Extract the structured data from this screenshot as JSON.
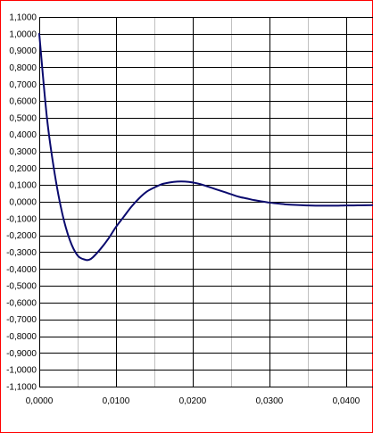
{
  "chart_data": {
    "type": "line",
    "title": "",
    "xlabel": "",
    "ylabel": "",
    "xlim": [
      0,
      0.0435
    ],
    "ylim": [
      -1.1,
      1.1
    ],
    "grid": true,
    "legend": "none",
    "x_ticks": [
      {
        "value": 0.0,
        "label": "0,0000"
      },
      {
        "value": 0.01,
        "label": "0,0100"
      },
      {
        "value": 0.02,
        "label": "0,0200"
      },
      {
        "value": 0.03,
        "label": "0,0300"
      },
      {
        "value": 0.04,
        "label": "0,0400"
      }
    ],
    "x_minor_step": 0.005,
    "y_ticks": [
      {
        "value": 1.1,
        "label": "1,1000"
      },
      {
        "value": 1.0,
        "label": "1,0000"
      },
      {
        "value": 0.9,
        "label": "0,9000"
      },
      {
        "value": 0.8,
        "label": "0,8000"
      },
      {
        "value": 0.7,
        "label": "0,7000"
      },
      {
        "value": 0.6,
        "label": "0,6000"
      },
      {
        "value": 0.5,
        "label": "0,5000"
      },
      {
        "value": 0.4,
        "label": "0,4000"
      },
      {
        "value": 0.3,
        "label": "0,3000"
      },
      {
        "value": 0.2,
        "label": "0,2000"
      },
      {
        "value": 0.1,
        "label": "0,1000"
      },
      {
        "value": 0.0,
        "label": "0,0000"
      },
      {
        "value": -0.1,
        "label": "-0,1000"
      },
      {
        "value": -0.2,
        "label": "-0,2000"
      },
      {
        "value": -0.3,
        "label": "-0,3000"
      },
      {
        "value": -0.4,
        "label": "-0,4000"
      },
      {
        "value": -0.5,
        "label": "-0,5000"
      },
      {
        "value": -0.6,
        "label": "-0,6000"
      },
      {
        "value": -0.7,
        "label": "-0,7000"
      },
      {
        "value": -0.8,
        "label": "-0,8000"
      },
      {
        "value": -0.9,
        "label": "-0,9000"
      },
      {
        "value": -1.0,
        "label": "-1,0000"
      },
      {
        "value": -1.1,
        "label": "-1,1000"
      }
    ],
    "series": [
      {
        "color": "#0a0a6e",
        "x": [
          0.0,
          0.001,
          0.002,
          0.003,
          0.004,
          0.005,
          0.006,
          0.0065,
          0.007,
          0.008,
          0.009,
          0.01,
          0.011,
          0.012,
          0.013,
          0.014,
          0.015,
          0.016,
          0.017,
          0.018,
          0.019,
          0.02,
          0.021,
          0.022,
          0.023,
          0.024,
          0.025,
          0.026,
          0.027,
          0.028,
          0.029,
          0.03,
          0.031,
          0.032,
          0.033,
          0.034,
          0.035,
          0.036,
          0.037,
          0.038,
          0.039,
          0.04,
          0.041,
          0.042,
          0.0435
        ],
        "y": [
          1.0,
          0.5,
          0.17,
          -0.07,
          -0.23,
          -0.32,
          -0.345,
          -0.345,
          -0.33,
          -0.28,
          -0.22,
          -0.15,
          -0.09,
          -0.03,
          0.02,
          0.06,
          0.085,
          0.105,
          0.115,
          0.12,
          0.12,
          0.115,
          0.105,
          0.09,
          0.075,
          0.06,
          0.045,
          0.03,
          0.02,
          0.01,
          0.002,
          -0.005,
          -0.01,
          -0.015,
          -0.018,
          -0.02,
          -0.022,
          -0.023,
          -0.023,
          -0.023,
          -0.023,
          -0.022,
          -0.022,
          -0.021,
          -0.02
        ]
      }
    ]
  },
  "colors": {
    "frame": "#ff0000",
    "grid_major": "#000000",
    "grid_minor": "#c0c0c0",
    "line": "#0a0a6e"
  }
}
